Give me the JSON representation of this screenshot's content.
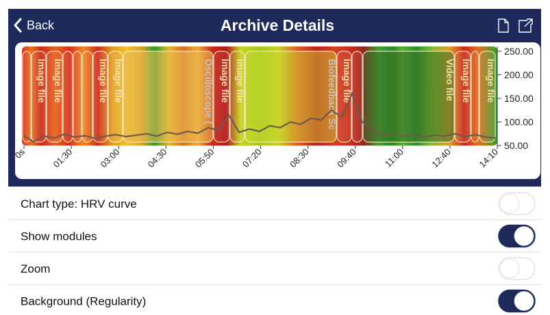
{
  "header": {
    "back": "Back",
    "title": "Archive Details"
  },
  "chart": {
    "type": "line",
    "ylim": [
      50,
      260
    ],
    "yticks": [
      {
        "value": 250,
        "label": "250.00"
      },
      {
        "value": 200,
        "label": "200.00"
      },
      {
        "value": 150,
        "label": "150.00"
      },
      {
        "value": 100,
        "label": "100.00"
      },
      {
        "value": 50,
        "label": "50.00"
      }
    ],
    "categories": [
      "0s",
      "01:30",
      "03:00",
      "04:30",
      "05:50",
      "07:20",
      "08:30",
      "09:40",
      "11:00",
      "12:40",
      "14:10"
    ],
    "series": [
      {
        "color": "#6e5a4c",
        "values": [
          72,
          58,
          70,
          66,
          74,
          68,
          71,
          65,
          70,
          73,
          69,
          72,
          75,
          70,
          78,
          74,
          80,
          76,
          88,
          82,
          115,
          78,
          85,
          80,
          92,
          88,
          100,
          95,
          108,
          104,
          125,
          110,
          160,
          100,
          85,
          72,
          76,
          70,
          74,
          68,
          72,
          70,
          75,
          69,
          73,
          68,
          66
        ]
      }
    ],
    "modules": [
      "Image file",
      "Image file",
      "Image file",
      "Image file",
      "Oscilloscope (",
      "Image file",
      "Image file",
      "Biofeedback Sc",
      "Image file",
      "Video file",
      "Image file",
      "Image file"
    ]
  },
  "settings": [
    {
      "label": "Chart type: HRV curve",
      "on": false
    },
    {
      "label": "Show modules",
      "on": true
    },
    {
      "label": "Zoom",
      "on": false
    },
    {
      "label": "Background (Regularity)",
      "on": true
    }
  ]
}
